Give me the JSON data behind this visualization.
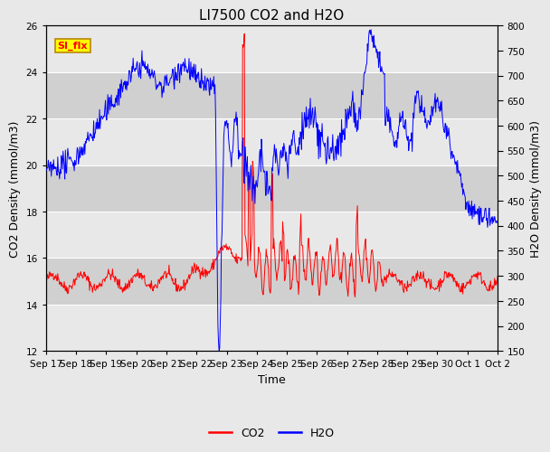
{
  "title": "LI7500 CO2 and H2O",
  "xlabel": "Time",
  "ylabel_left": "CO2 Density (mmol/m3)",
  "ylabel_right": "H2O Density (mmol/m3)",
  "ylim_left": [
    12,
    26
  ],
  "ylim_right": [
    150,
    800
  ],
  "yticks_left": [
    12,
    14,
    16,
    18,
    20,
    22,
    24,
    26
  ],
  "yticks_right": [
    150,
    200,
    250,
    300,
    350,
    400,
    450,
    500,
    550,
    600,
    650,
    700,
    750,
    800
  ],
  "xtick_labels": [
    "Sep 17",
    "Sep 18",
    "Sep 19",
    "Sep 20",
    "Sep 21",
    "Sep 22",
    "Sep 23",
    "Sep 24",
    "Sep 25",
    "Sep 26",
    "Sep 27",
    "Sep 28",
    "Sep 29",
    "Sep 30",
    "Oct 1",
    "Oct 2"
  ],
  "co2_color": "#FF0000",
  "h2o_color": "#0000FF",
  "fig_bg_color": "#E8E8E8",
  "plot_bg_color": "#D8D8D8",
  "band_color_light": "#E8E8E8",
  "band_color_dark": "#D0D0D0",
  "annotation_text": "SI_flx",
  "annotation_bg": "#FFFF00",
  "annotation_border": "#B8860B",
  "legend_co2": "CO2",
  "legend_h2o": "H2O",
  "title_fontsize": 11,
  "axis_label_fontsize": 9,
  "tick_fontsize": 7.5
}
